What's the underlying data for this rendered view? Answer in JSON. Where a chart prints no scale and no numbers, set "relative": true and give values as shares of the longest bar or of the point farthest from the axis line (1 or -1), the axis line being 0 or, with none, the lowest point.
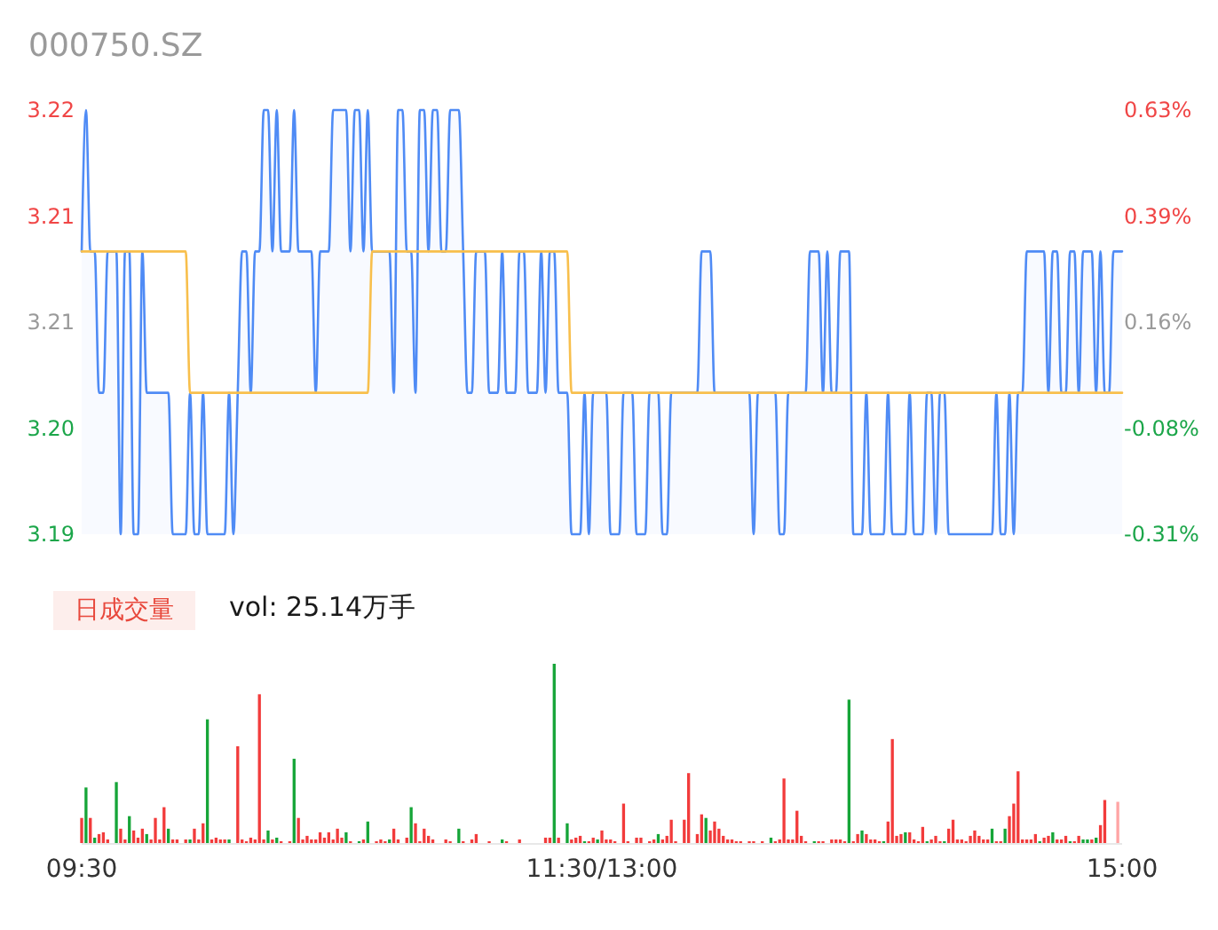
{
  "chart_data": [
    {
      "type": "line",
      "title": "000750.SZ",
      "categories": [
        null,
        null,
        null,
        null,
        null,
        null,
        null,
        null,
        null,
        null,
        null,
        null,
        null,
        null,
        null,
        null,
        null,
        null,
        null,
        null,
        null,
        null,
        null,
        null,
        null,
        null,
        null,
        null,
        null,
        null,
        null,
        null,
        null,
        null,
        null,
        null,
        null,
        null,
        null,
        null,
        null,
        null,
        null,
        null,
        null,
        null,
        null,
        null,
        null,
        null,
        null,
        null,
        null,
        null,
        null,
        null,
        null,
        null,
        null,
        null,
        null,
        null,
        null,
        null,
        null,
        null,
        null,
        null,
        null,
        null,
        null,
        null,
        null,
        null,
        null,
        null,
        null,
        null,
        null,
        null,
        null,
        null,
        null,
        null,
        null,
        null,
        null,
        null,
        null,
        null,
        null,
        null,
        null,
        null,
        null,
        null,
        null,
        null,
        null,
        null,
        null,
        null,
        null,
        null,
        null,
        null,
        null,
        null,
        null,
        null,
        null,
        null,
        null,
        null,
        null,
        null,
        null,
        null,
        null,
        null,
        null,
        null,
        null,
        null,
        null,
        null,
        null,
        null,
        null,
        null,
        null,
        null,
        null,
        null,
        null,
        null,
        null,
        null,
        null,
        null,
        null,
        null,
        null,
        null,
        null,
        null,
        null,
        null,
        null,
        null,
        null,
        null,
        null,
        null,
        null,
        null,
        null,
        null,
        null,
        null,
        null,
        null,
        null,
        null,
        null,
        null,
        null,
        null,
        null,
        null,
        null,
        null,
        null,
        null,
        null,
        null,
        null,
        null,
        null,
        null,
        null,
        null,
        null,
        null,
        null,
        null,
        null,
        null,
        null,
        null,
        null,
        null,
        null,
        null,
        null,
        null,
        null,
        null,
        null,
        null,
        null,
        null,
        null,
        null,
        null,
        null,
        null,
        null,
        null,
        null,
        null,
        null,
        null,
        null,
        null,
        null,
        null,
        null,
        null,
        null,
        null,
        null,
        null,
        null,
        null,
        null,
        null,
        null,
        null,
        null,
        null,
        null,
        null,
        null,
        null,
        null,
        null,
        null,
        null,
        null,
        null
      ],
      "ylim": [
        3.19,
        3.22
      ],
      "yticks": [
        3.22,
        {
          "value": 3.2125,
          "label": "3.21"
        },
        {
          "value": 3.205,
          "label": "3.21"
        },
        {
          "value": 3.1975,
          "label": "3.20"
        },
        3.19
      ],
      "y2lim": [
        -0.3125,
        0.625
      ],
      "y2ticks": [
        {
          "value": 0.625,
          "label": "0.63%"
        },
        {
          "value": 0.390625,
          "label": "0.39%"
        },
        {
          "value": 0.15625,
          "label": "0.16%"
        },
        {
          "value": -0.078125,
          "label": "-0.08%"
        },
        {
          "value": -0.3125,
          "label": "-0.31%"
        }
      ],
      "series": [
        {
          "type": "area",
          "color": "#4f8bf5",
          "values": [
            3.21,
            3.22,
            3.21,
            3.21,
            3.2,
            3.2,
            3.21,
            3.21,
            3.21,
            3.19,
            3.21,
            3.21,
            3.19,
            3.19,
            3.21,
            3.2,
            3.2,
            3.2,
            3.2,
            3.2,
            3.2,
            3.19,
            3.19,
            3.19,
            3.19,
            3.2,
            3.19,
            3.19,
            3.2,
            3.19,
            3.19,
            3.19,
            3.19,
            3.19,
            3.2,
            3.19,
            3.2,
            3.21,
            3.21,
            3.2,
            3.21,
            3.21,
            3.22,
            3.22,
            3.21,
            3.22,
            3.21,
            3.21,
            3.21,
            3.22,
            3.21,
            3.21,
            3.21,
            3.21,
            3.2,
            3.21,
            3.21,
            3.21,
            3.22,
            3.22,
            3.22,
            3.22,
            3.21,
            3.22,
            3.22,
            3.21,
            3.22,
            3.21,
            3.21,
            3.21,
            3.21,
            3.21,
            3.2,
            3.22,
            3.22,
            3.21,
            3.21,
            3.2,
            3.22,
            3.22,
            3.21,
            3.22,
            3.22,
            3.21,
            3.21,
            3.22,
            3.22,
            3.22,
            3.21,
            3.2,
            3.2,
            3.21,
            3.21,
            3.21,
            3.2,
            3.2,
            3.2,
            3.21,
            3.2,
            3.2,
            3.2,
            3.21,
            3.21,
            3.2,
            3.2,
            3.2,
            3.21,
            3.2,
            3.21,
            3.21,
            3.2,
            3.2,
            3.2,
            3.19,
            3.19,
            3.19,
            3.2,
            3.19,
            3.2,
            3.2,
            3.2,
            3.2,
            3.19,
            3.19,
            3.19,
            3.2,
            3.2,
            3.2,
            3.19,
            3.19,
            3.19,
            3.2,
            3.2,
            3.2,
            3.19,
            3.19,
            3.2,
            3.2,
            3.2,
            3.2,
            3.2,
            3.2,
            3.2,
            3.21,
            3.21,
            3.21,
            3.2,
            3.2,
            3.2,
            3.2,
            3.2,
            3.2,
            3.2,
            3.2,
            3.2,
            3.19,
            3.2,
            3.2,
            3.2,
            3.2,
            3.2,
            3.19,
            3.19,
            3.2,
            3.2,
            3.2,
            3.2,
            3.2,
            3.21,
            3.21,
            3.21,
            3.2,
            3.21,
            3.2,
            3.2,
            3.21,
            3.21,
            3.21,
            3.19,
            3.19,
            3.19,
            3.2,
            3.19,
            3.19,
            3.19,
            3.19,
            3.2,
            3.19,
            3.19,
            3.19,
            3.19,
            3.2,
            3.19,
            3.19,
            3.19,
            3.2,
            3.2,
            3.19,
            3.2,
            3.2,
            3.19,
            3.19,
            3.19,
            3.19,
            3.19,
            3.19,
            3.19,
            3.19,
            3.19,
            3.19,
            3.19,
            3.2,
            3.19,
            3.19,
            3.2,
            3.19,
            3.2,
            3.2,
            3.21,
            3.21,
            3.21,
            3.21,
            3.21,
            3.2,
            3.21,
            3.21,
            3.2,
            3.2,
            3.21,
            3.21,
            3.2,
            3.21,
            3.21,
            3.21,
            3.2,
            3.21,
            3.2,
            3.2,
            3.21,
            3.21,
            3.21
          ]
        },
        {
          "color": "#f8bf4c",
          "values": [
            3.21,
            3.21,
            3.21,
            3.21,
            3.21,
            3.21,
            3.21,
            3.21,
            3.21,
            3.21,
            3.21,
            3.21,
            3.21,
            3.21,
            3.21,
            3.21,
            3.21,
            3.21,
            3.21,
            3.21,
            3.21,
            3.21,
            3.21,
            3.21,
            3.21,
            3.2,
            3.2,
            3.2,
            3.2,
            3.2,
            3.2,
            3.2,
            3.2,
            3.2,
            3.2,
            3.2,
            3.2,
            3.2,
            3.2,
            3.2,
            3.2,
            3.2,
            3.2,
            3.2,
            3.2,
            3.2,
            3.2,
            3.2,
            3.2,
            3.2,
            3.2,
            3.2,
            3.2,
            3.2,
            3.2,
            3.2,
            3.2,
            3.2,
            3.2,
            3.2,
            3.2,
            3.2,
            3.2,
            3.2,
            3.2,
            3.2,
            3.2,
            3.21,
            3.21,
            3.21,
            3.21,
            3.21,
            3.21,
            3.21,
            3.21,
            3.21,
            3.21,
            3.21,
            3.21,
            3.21,
            3.21,
            3.21,
            3.21,
            3.21,
            3.21,
            3.21,
            3.21,
            3.21,
            3.21,
            3.21,
            3.21,
            3.21,
            3.21,
            3.21,
            3.21,
            3.21,
            3.21,
            3.21,
            3.21,
            3.21,
            3.21,
            3.21,
            3.21,
            3.21,
            3.21,
            3.21,
            3.21,
            3.21,
            3.21,
            3.21,
            3.21,
            3.21,
            3.21,
            3.2,
            3.2,
            3.2,
            3.2,
            3.2,
            3.2,
            3.2,
            3.2,
            3.2,
            3.2,
            3.2,
            3.2,
            3.2,
            3.2,
            3.2,
            3.2,
            3.2,
            3.2,
            3.2,
            3.2,
            3.2,
            3.2,
            3.2,
            3.2,
            3.2,
            3.2,
            3.2,
            3.2,
            3.2,
            3.2,
            3.2,
            3.2,
            3.2,
            3.2,
            3.2,
            3.2,
            3.2,
            3.2,
            3.2,
            3.2,
            3.2,
            3.2,
            3.2,
            3.2,
            3.2,
            3.2,
            3.2,
            3.2,
            3.2,
            3.2,
            3.2,
            3.2,
            3.2,
            3.2,
            3.2,
            3.2,
            3.2,
            3.2,
            3.2,
            3.2,
            3.2,
            3.2,
            3.2,
            3.2,
            3.2,
            3.2,
            3.2,
            3.2,
            3.2,
            3.2,
            3.2,
            3.2,
            3.2,
            3.2,
            3.2,
            3.2,
            3.2,
            3.2,
            3.2,
            3.2,
            3.2,
            3.2,
            3.2,
            3.2,
            3.2,
            3.2,
            3.2,
            3.2,
            3.2,
            3.2,
            3.2,
            3.2,
            3.2,
            3.2,
            3.2,
            3.2,
            3.2,
            3.2,
            3.2,
            3.2,
            3.2,
            3.2,
            3.2,
            3.2,
            3.2,
            3.2,
            3.2,
            3.2,
            3.2,
            3.2,
            3.2,
            3.2,
            3.2,
            3.2,
            3.2,
            3.2,
            3.2,
            3.2,
            3.2,
            3.2,
            3.2,
            3.2,
            3.2,
            3.2,
            3.2,
            3.2,
            3.2,
            3.2
          ]
        }
      ]
    },
    {
      "type": "bar",
      "title": "日成交量",
      "subtitle": "vol: 25.14万手",
      "relative": true,
      "categories": [
        "09:30",
        null,
        null,
        null,
        null,
        null,
        null,
        null,
        null,
        null,
        null,
        null,
        null,
        null,
        null,
        null,
        null,
        null,
        null,
        null,
        null,
        null,
        null,
        null,
        null,
        null,
        null,
        null,
        null,
        null,
        null,
        null,
        null,
        null,
        null,
        null,
        null,
        null,
        null,
        null,
        null,
        null,
        null,
        null,
        null,
        null,
        null,
        null,
        null,
        null,
        null,
        null,
        null,
        null,
        null,
        null,
        null,
        null,
        null,
        null,
        null,
        null,
        null,
        null,
        null,
        null,
        null,
        null,
        null,
        null,
        null,
        null,
        null,
        null,
        null,
        null,
        null,
        null,
        null,
        null,
        null,
        null,
        null,
        null,
        null,
        null,
        null,
        null,
        null,
        null,
        null,
        null,
        null,
        null,
        null,
        null,
        null,
        null,
        null,
        null,
        null,
        null,
        null,
        null,
        null,
        null,
        null,
        null,
        null,
        null,
        null,
        null,
        null,
        null,
        null,
        null,
        null,
        null,
        null,
        null,
        "11:30/13:00",
        null,
        null,
        null,
        null,
        null,
        null,
        null,
        null,
        null,
        null,
        null,
        null,
        null,
        null,
        null,
        null,
        null,
        null,
        null,
        null,
        null,
        null,
        null,
        null,
        null,
        null,
        null,
        null,
        null,
        null,
        null,
        null,
        null,
        null,
        null,
        null,
        null,
        null,
        null,
        null,
        null,
        null,
        null,
        null,
        null,
        null,
        null,
        null,
        null,
        null,
        null,
        null,
        null,
        null,
        null,
        null,
        null,
        null,
        null,
        null,
        null,
        null,
        null,
        null,
        null,
        null,
        null,
        null,
        null,
        null,
        null,
        null,
        null,
        null,
        null,
        null,
        null,
        null,
        null,
        null,
        null,
        null,
        null,
        null,
        null,
        null,
        null,
        null,
        null,
        null,
        null,
        null,
        null,
        null,
        null,
        null,
        null,
        null,
        null,
        null,
        null,
        null,
        null,
        null,
        null,
        null,
        null,
        null,
        null,
        null,
        null,
        null,
        null,
        null,
        null,
        null,
        null,
        null,
        null,
        "15:00"
      ],
      "values": [
        0.14,
        0.31,
        0.14,
        0.03,
        0.05,
        0.06,
        0.02,
        null,
        0.34,
        0.08,
        0.02,
        0.15,
        0.07,
        0.03,
        0.08,
        0.05,
        0.02,
        0.14,
        0.02,
        0.2,
        0.08,
        0.02,
        0.02,
        null,
        0.02,
        0.02,
        0.08,
        0.02,
        0.11,
        0.69,
        0.02,
        0.03,
        0.02,
        0.02,
        0.02,
        null,
        0.54,
        0.02,
        0.01,
        0.03,
        0.02,
        0.83,
        0.02,
        0.07,
        0.02,
        0.03,
        0.01,
        null,
        0.01,
        0.47,
        0.14,
        0.02,
        0.04,
        0.02,
        0.02,
        0.06,
        0.03,
        0.06,
        0.02,
        0.08,
        0.03,
        0.06,
        0.01,
        null,
        0.01,
        0.02,
        0.12,
        null,
        0.01,
        0.02,
        0.01,
        0.02,
        0.08,
        0.02,
        null,
        0.03,
        0.2,
        0.11,
        0.01,
        0.08,
        0.04,
        0.02,
        null,
        null,
        0.02,
        0.01,
        null,
        0.08,
        0.01,
        null,
        0.02,
        0.05,
        null,
        null,
        0.01,
        null,
        null,
        0.02,
        0.01,
        null,
        null,
        0.02,
        null,
        null,
        null,
        null,
        null,
        0.03,
        0.03,
        1,
        0.03,
        null,
        0.11,
        0.02,
        0.03,
        0.04,
        0.01,
        0.01,
        0.03,
        0.02,
        0.07,
        0.02,
        0.02,
        0.01,
        null,
        0.22,
        0.01,
        null,
        0.03,
        0.03,
        null,
        0.01,
        0.02,
        0.05,
        0.02,
        0.04,
        0.13,
        0.01,
        null,
        0.13,
        0.39,
        null,
        0.05,
        0.16,
        0.14,
        0.07,
        0.12,
        0.08,
        0.04,
        0.02,
        0.02,
        0.01,
        0.01,
        null,
        0.01,
        0.01,
        null,
        0.01,
        null,
        0.03,
        0.01,
        0.02,
        0.36,
        0.02,
        0.02,
        0.18,
        0.04,
        0.01,
        null,
        0.01,
        0.01,
        0.01,
        null,
        0.02,
        0.02,
        0.02,
        0.01,
        0.8,
        0.01,
        0.05,
        0.07,
        0.05,
        0.02,
        0.02,
        0.01,
        0.01,
        0.12,
        0.58,
        0.04,
        0.05,
        0.06,
        0.06,
        0.02,
        0.01,
        0.09,
        0.01,
        0.02,
        0.04,
        0.01,
        0.01,
        0.08,
        0.13,
        0.02,
        0.02,
        0.01,
        0.04,
        0.07,
        0.04,
        0.02,
        0.02,
        0.08,
        0.01,
        0.01,
        0.08,
        0.15,
        0.22,
        0.4,
        0.02,
        0.02,
        0.02,
        0.05,
        0.01,
        0.03,
        0.04,
        0.06,
        0.02,
        0.02,
        0.04,
        0.01,
        0.01,
        0.04,
        0.02,
        0.02,
        0.02,
        0.03,
        0.1,
        0.24,
        null,
        null,
        0.23,
        null
      ],
      "colors": [
        "#f23b3b",
        "#16a538",
        "#f23b3b",
        "#16a538",
        "#f23b3b",
        "#f23b3b",
        "#f23b3b",
        null,
        "#16a538",
        "#f23b3b",
        "#f23b3b",
        "#16a538",
        "#f23b3b",
        "#f23b3b",
        "#f23b3b",
        "#16a538",
        "#f23b3b",
        "#f23b3b",
        "#f23b3b",
        "#f23b3b",
        "#16a538",
        "#f23b3b",
        "#f23b3b",
        null,
        "#f23b3b",
        "#16a538",
        "#f23b3b",
        "#f23b3b",
        "#f23b3b",
        "#16a538",
        "#f23b3b",
        "#f23b3b",
        "#f23b3b",
        "#f23b3b",
        "#16a538",
        null,
        "#f23b3b",
        "#f23b3b",
        "#f23b3b",
        "#f23b3b",
        "#f23b3b",
        "#f23b3b",
        "#f23b3b",
        "#16a538",
        "#f23b3b",
        "#16a538",
        "#f23b3b",
        null,
        "#f23b3b",
        "#16a538",
        "#f23b3b",
        "#f23b3b",
        "#f23b3b",
        "#f23b3b",
        "#f23b3b",
        "#f23b3b",
        "#f23b3b",
        "#f23b3b",
        "#f23b3b",
        "#f23b3b",
        "#f23b3b",
        "#16a538",
        "#f23b3b",
        null,
        "#16a538",
        "#f23b3b",
        "#16a538",
        null,
        "#f23b3b",
        "#f23b3b",
        "#f23b3b",
        "#16a538",
        "#f23b3b",
        "#f23b3b",
        null,
        "#f23b3b",
        "#16a538",
        "#f23b3b",
        "#f23b3b",
        "#f23b3b",
        "#f23b3b",
        "#f23b3b",
        null,
        null,
        "#f23b3b",
        "#f23b3b",
        null,
        "#16a538",
        "#f23b3b",
        null,
        "#f23b3b",
        "#f23b3b",
        null,
        null,
        "#f23b3b",
        null,
        null,
        "#16a538",
        "#f23b3b",
        null,
        null,
        "#f23b3b",
        null,
        null,
        null,
        null,
        null,
        "#f23b3b",
        "#f23b3b",
        "#16a538",
        "#f23b3b",
        null,
        "#16a538",
        "#f23b3b",
        "#f23b3b",
        "#f23b3b",
        "#16a538",
        "#f23b3b",
        "#f23b3b",
        "#16a538",
        "#f23b3b",
        "#f23b3b",
        "#f23b3b",
        "#f23b3b",
        null,
        "#f23b3b",
        "#f23b3b",
        null,
        "#f23b3b",
        "#f23b3b",
        null,
        "#f23b3b",
        "#f23b3b",
        "#16a538",
        "#f23b3b",
        "#f23b3b",
        "#f23b3b",
        "#f23b3b",
        null,
        "#f23b3b",
        "#f23b3b",
        null,
        "#f23b3b",
        "#f23b3b",
        "#16a538",
        "#f23b3b",
        "#f23b3b",
        "#f23b3b",
        "#f23b3b",
        "#f23b3b",
        "#f23b3b",
        "#f23b3b",
        "#f23b3b",
        null,
        "#f23b3b",
        "#f23b3b",
        null,
        "#f23b3b",
        null,
        "#16a538",
        "#f23b3b",
        "#f23b3b",
        "#f23b3b",
        "#f23b3b",
        "#f23b3b",
        "#f23b3b",
        "#f23b3b",
        "#f23b3b",
        null,
        "#16a538",
        "#f23b3b",
        "#f23b3b",
        null,
        "#f23b3b",
        "#f23b3b",
        "#f23b3b",
        "#f23b3b",
        "#16a538",
        "#f23b3b",
        "#f23b3b",
        "#16a538",
        "#f23b3b",
        "#f23b3b",
        "#f23b3b",
        "#f23b3b",
        "#16a538",
        "#f23b3b",
        "#f23b3b",
        "#f23b3b",
        "#f23b3b",
        "#16a538",
        "#f23b3b",
        "#f23b3b",
        "#f23b3b",
        "#f23b3b",
        "#16a538",
        "#f23b3b",
        "#f23b3b",
        "#f23b3b",
        "#16a538",
        "#f23b3b",
        "#f23b3b",
        "#f23b3b",
        "#f23b3b",
        "#f23b3b",
        "#f23b3b",
        "#f23b3b",
        "#f23b3b",
        "#f23b3b",
        "#f23b3b",
        "#16a538",
        "#f23b3b",
        "#f23b3b",
        "#16a538",
        "#f23b3b",
        "#f23b3b",
        "#f23b3b",
        "#f23b3b",
        "#f23b3b",
        "#f23b3b",
        "#f23b3b",
        "#16a538",
        "#f23b3b",
        "#f23b3b",
        "#16a538",
        "#f23b3b",
        "#f23b3b",
        "#f23b3b",
        "#16a538",
        "#f23b3b",
        "#f23b3b",
        "#16a538",
        "#16a538",
        "#f23b3b",
        "#16a538",
        "#f23b3b",
        "#f23b3b",
        null,
        null,
        "#ffa5a5",
        null
      ]
    }
  ]
}
